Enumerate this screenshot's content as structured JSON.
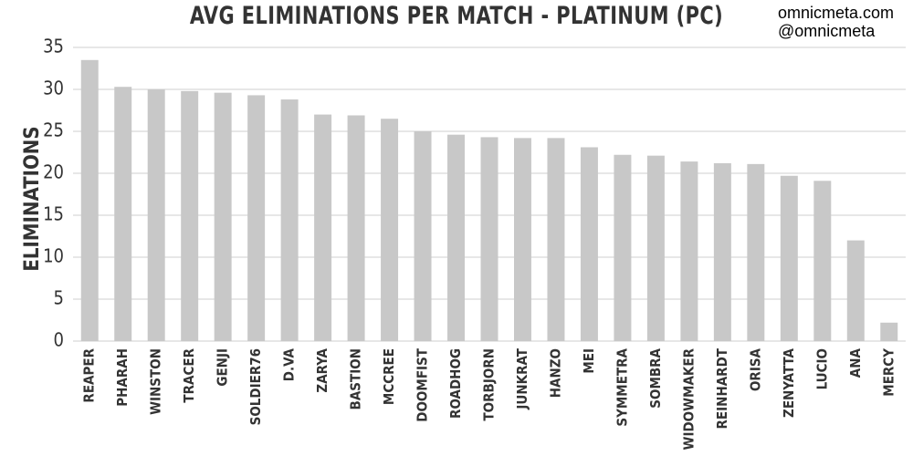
{
  "credits": {
    "site": "omnicmeta.com",
    "handle": "@omnicmeta"
  },
  "chart_data": {
    "type": "bar",
    "title": "AVG ELIMINATIONS PER MATCH - PLATINUM (PC)",
    "xlabel": "",
    "ylabel": "ELIMINATIONS",
    "ylim": [
      0,
      35
    ],
    "yticks": [
      0,
      5,
      10,
      15,
      20,
      25,
      30,
      35
    ],
    "grid": true,
    "bar_color": "#c8c8c8",
    "categories": [
      "REAPER",
      "PHARAH",
      "WINSTON",
      "TRACER",
      "GENJI",
      "SOLDIER76",
      "D.VA",
      "ZARYA",
      "BASTION",
      "MCCREE",
      "DOOMFIST",
      "ROADHOG",
      "TORBJORN",
      "JUNKRAT",
      "HANZO",
      "MEI",
      "SYMMETRA",
      "SOMBRA",
      "WIDOWMAKER",
      "REINHARDT",
      "ORISA",
      "ZENYATTA",
      "LUCIO",
      "ANA",
      "MERCY"
    ],
    "values": [
      33.5,
      30.3,
      30.0,
      29.8,
      29.6,
      29.3,
      28.8,
      27.0,
      26.9,
      26.5,
      25.0,
      24.6,
      24.3,
      24.2,
      24.2,
      23.1,
      22.2,
      22.1,
      21.4,
      21.2,
      21.1,
      19.7,
      19.1,
      12.0,
      2.2
    ]
  }
}
